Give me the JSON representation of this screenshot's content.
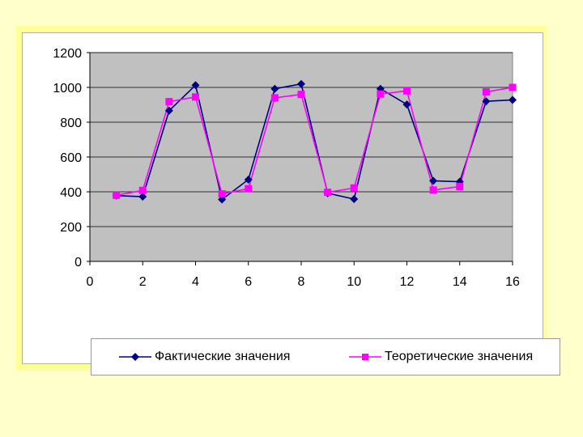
{
  "chart_data": {
    "type": "line",
    "title": "",
    "xlabel": "",
    "ylabel": "",
    "xlim": [
      0,
      16
    ],
    "ylim": [
      0,
      1200
    ],
    "xticks": [
      "0",
      "2",
      "4",
      "6",
      "8",
      "10",
      "12",
      "14",
      "16"
    ],
    "yticks": [
      "0",
      "200",
      "400",
      "600",
      "800",
      "1000",
      "1200"
    ],
    "grid": true,
    "legend_position": "bottom",
    "plot_background": "#c0c0c0",
    "series": [
      {
        "name": "Фактические значения",
        "color": "#000080",
        "marker": "diamond",
        "x": [
          1,
          2,
          3,
          4,
          5,
          6,
          7,
          8,
          9,
          10,
          11,
          12,
          13,
          14,
          15,
          16
        ],
        "y": [
          378,
          372,
          866,
          1013,
          356,
          470,
          992,
          1020,
          392,
          358,
          992,
          902,
          463,
          458,
          920,
          928
        ]
      },
      {
        "name": "Теоретические значения",
        "color": "#ff00ff",
        "marker": "square",
        "x": [
          1,
          2,
          3,
          4,
          5,
          6,
          7,
          8,
          9,
          10,
          11,
          12,
          13,
          14,
          15,
          16
        ],
        "y": [
          380,
          408,
          918,
          945,
          388,
          418,
          940,
          960,
          397,
          422,
          962,
          980,
          410,
          430,
          974,
          1000
        ]
      }
    ]
  }
}
